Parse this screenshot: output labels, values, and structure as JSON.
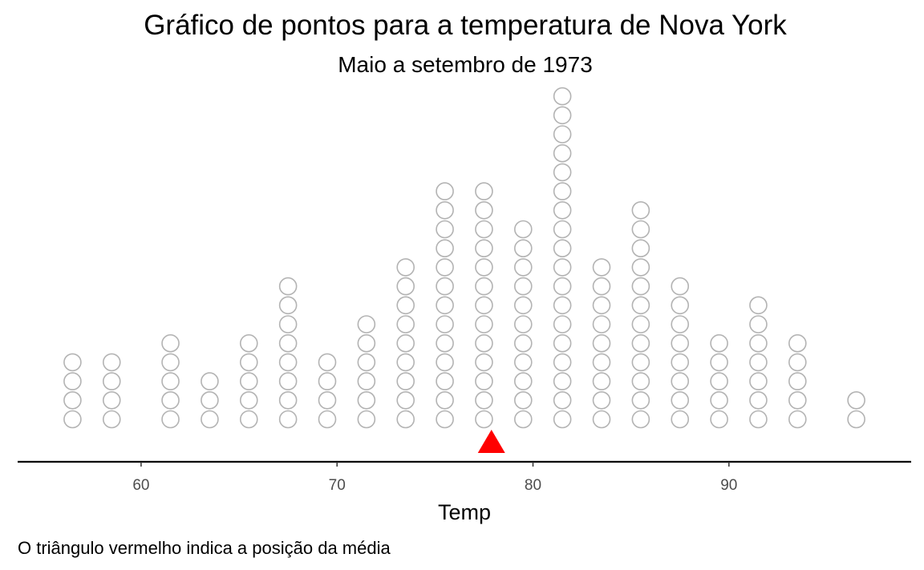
{
  "chart_data": {
    "type": "scatter",
    "subtype": "dot-plot",
    "title": "Gráfico de pontos para a temperatura de Nova York",
    "subtitle": "Maio a setembro de 1973",
    "xlabel": "Temp",
    "caption": "O triângulo vermelho indica a posição da média",
    "xlim": [
      53.7,
      99.3
    ],
    "xticks": [
      60,
      70,
      80,
      90
    ],
    "xtick_labels": [
      "60",
      "70",
      "80",
      "90"
    ],
    "bins": [
      {
        "x": 56.5,
        "count": 4
      },
      {
        "x": 58.5,
        "count": 4
      },
      {
        "x": 61.5,
        "count": 5
      },
      {
        "x": 63.5,
        "count": 3
      },
      {
        "x": 65.5,
        "count": 5
      },
      {
        "x": 67.5,
        "count": 8
      },
      {
        "x": 69.5,
        "count": 4
      },
      {
        "x": 71.5,
        "count": 6
      },
      {
        "x": 73.5,
        "count": 9
      },
      {
        "x": 75.5,
        "count": 13
      },
      {
        "x": 77.5,
        "count": 13
      },
      {
        "x": 79.5,
        "count": 11
      },
      {
        "x": 81.5,
        "count": 18
      },
      {
        "x": 83.5,
        "count": 9
      },
      {
        "x": 85.5,
        "count": 12
      },
      {
        "x": 87.5,
        "count": 8
      },
      {
        "x": 89.5,
        "count": 5
      },
      {
        "x": 91.5,
        "count": 7
      },
      {
        "x": 93.5,
        "count": 5
      },
      {
        "x": 96.5,
        "count": 2
      }
    ],
    "mean": 77.88,
    "mean_marker_color": "#ff0000",
    "point_stroke_color": "#b3b3b3",
    "grid": false
  }
}
